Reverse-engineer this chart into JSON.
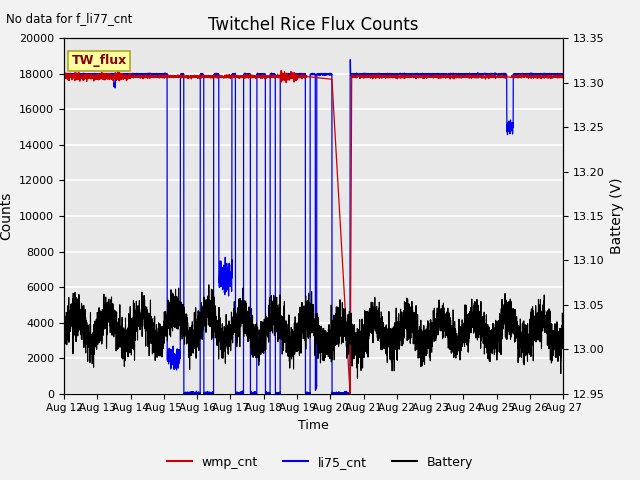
{
  "title": "Twitchel Rice Flux Counts",
  "no_data_text": "No data for f_li77_cnt",
  "xlabel": "Time",
  "ylabel_left": "Counts",
  "ylabel_right": "Battery (V)",
  "ylim_left": [
    0,
    20000
  ],
  "ylim_right": [
    12.95,
    13.35
  ],
  "yticks_left": [
    0,
    2000,
    4000,
    6000,
    8000,
    10000,
    12000,
    14000,
    16000,
    18000,
    20000
  ],
  "yticks_right": [
    12.95,
    13.0,
    13.05,
    13.1,
    13.15,
    13.2,
    13.25,
    13.3,
    13.35
  ],
  "xtick_labels": [
    "Aug 12",
    "Aug 13",
    "Aug 14",
    "Aug 15",
    "Aug 16",
    "Aug 17",
    "Aug 18",
    "Aug 19",
    "Aug 20",
    "Aug 21",
    "Aug 22",
    "Aug 23",
    "Aug 24",
    "Aug 25",
    "Aug 26",
    "Aug 27"
  ],
  "plot_bg_color": "#e8e8e8",
  "fig_bg_color": "#f2f2f2",
  "grid_color": "#ffffff",
  "wmp_color": "#cc0000",
  "li75_color": "#0000ee",
  "battery_color": "#000000",
  "tw_flux_box_facecolor": "#ffffa0",
  "tw_flux_box_edgecolor": "#aaa820",
  "tw_flux_label": "TW_flux",
  "legend_entries": [
    "wmp_cnt",
    "li75_cnt",
    "Battery"
  ],
  "n_days": 15,
  "pts_per_day": 288
}
